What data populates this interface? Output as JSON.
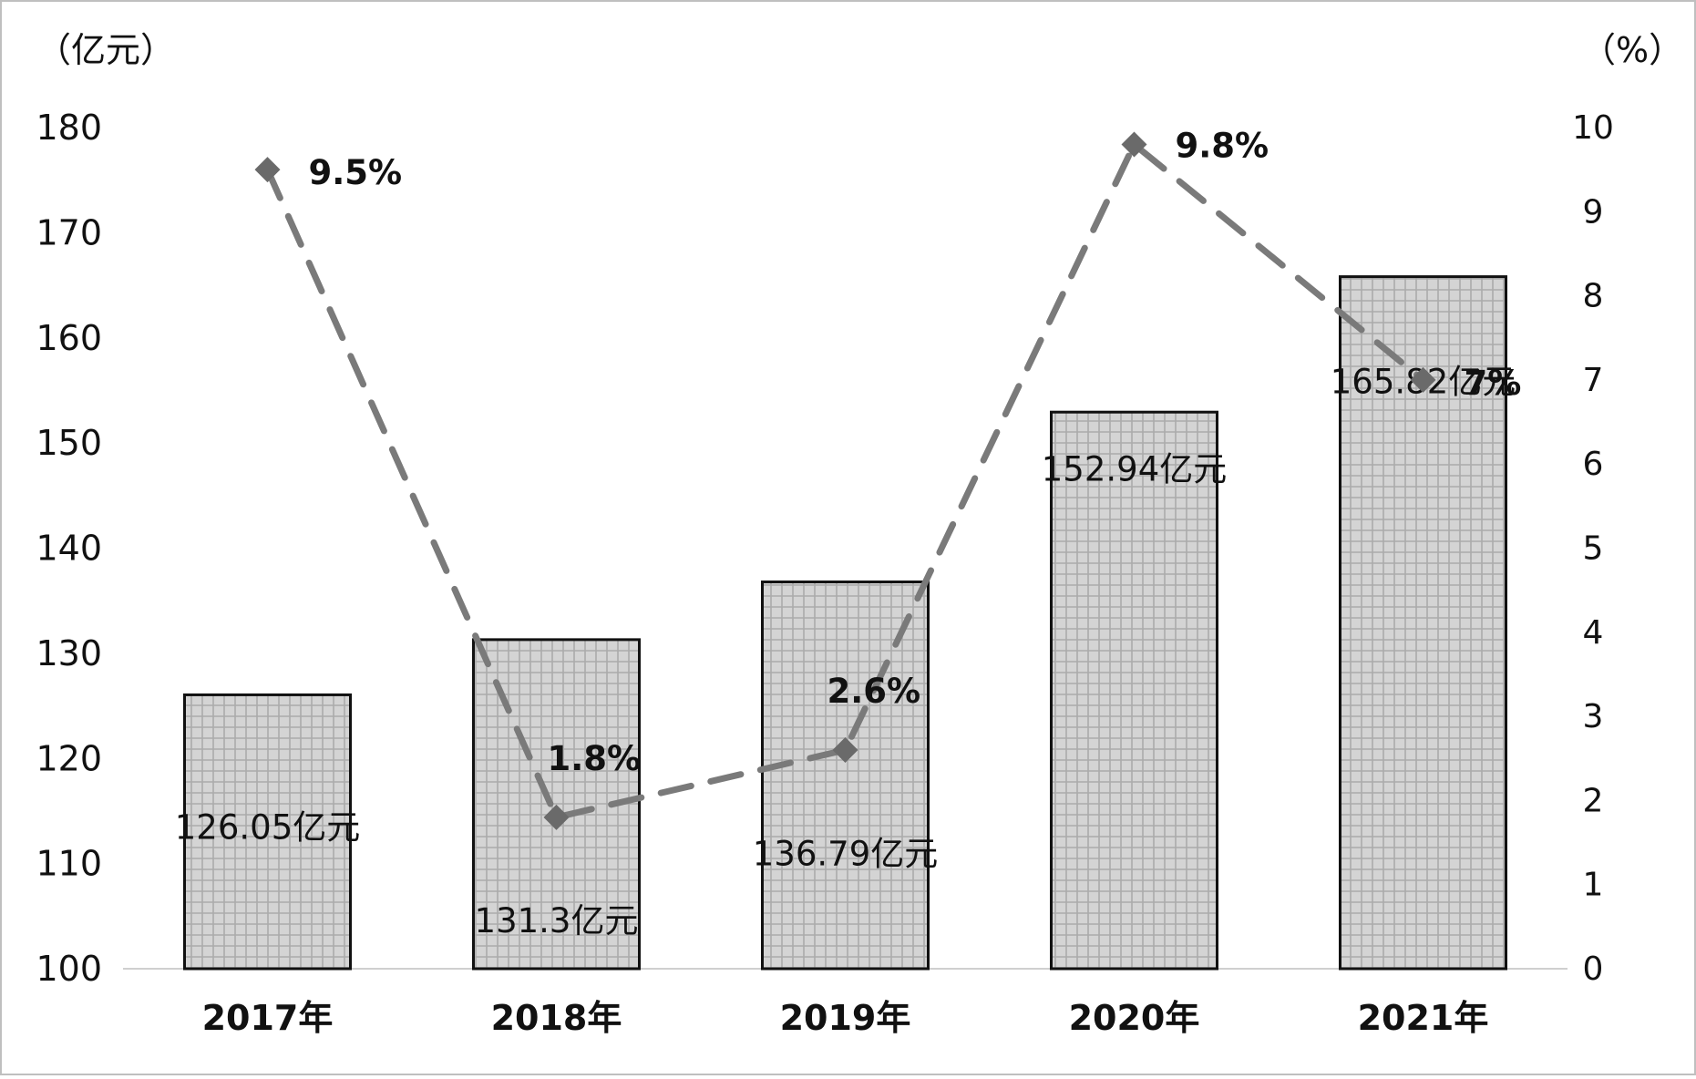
{
  "chart_data": {
    "type": "bar",
    "categories": [
      "2017年",
      "2018年",
      "2019年",
      "2020年",
      "2021年"
    ],
    "series": [
      {
        "type": "bar",
        "axis": "left",
        "values": [
          126.05,
          131.3,
          136.79,
          152.94,
          165.82
        ],
        "labels": [
          "126.05亿元",
          "131.3亿元",
          "136.79亿元",
          "152.94亿元",
          "165.82亿元"
        ]
      },
      {
        "type": "line",
        "axis": "right",
        "values": [
          9.5,
          1.8,
          2.6,
          9.8,
          7
        ],
        "labels": [
          "9.5%",
          "1.8%",
          "2.6%",
          "9.8%",
          "7%"
        ]
      }
    ],
    "left_axis": {
      "unit": "（亿元）",
      "range": [
        100,
        180
      ],
      "ticks": [
        "100",
        "110",
        "120",
        "130",
        "140",
        "150",
        "160",
        "170",
        "180"
      ]
    },
    "right_axis": {
      "unit": "（%）",
      "range": [
        0,
        10
      ],
      "ticks": [
        "0",
        "1",
        "2",
        "3",
        "4",
        "5",
        "6",
        "7",
        "8",
        "9",
        "10"
      ]
    },
    "grid": false,
    "legend": "none",
    "colors": {
      "bar_fill": "#d2d2d2",
      "bar_stroke": "#111111",
      "line": "#7a7a7a",
      "marker": "#6a6a6a"
    }
  }
}
